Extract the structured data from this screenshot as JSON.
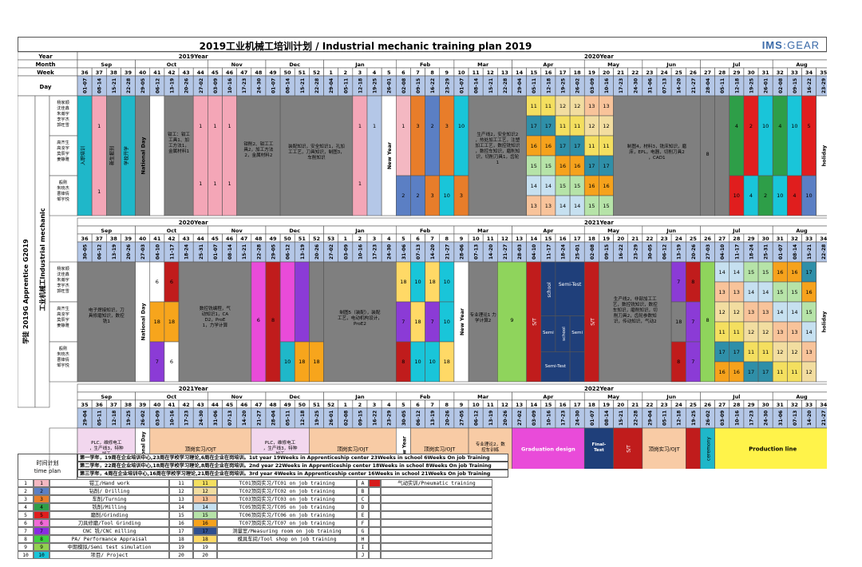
{
  "header": {
    "title": "2019工业机械工培训计划 / Industrial mechanic training plan 2019",
    "logo_main": "IMS",
    "logo_sep": ":",
    "logo_sub": "GEAR"
  },
  "left_labels": {
    "year": "Year",
    "month": "Month",
    "week": "Week",
    "day": "Day",
    "apprentice": "学徒 2019G  Apprentice G2019",
    "industrial": "工业机械工Industrial mechanic",
    "groups": [
      "杨家顺\n沈佳鑫\n朱瀚宇\n李宇杰\n郭旺雪",
      "高齐生\n高浚宇\n莫辰宇\n姜静雅",
      "般刚\n朱晓杰\n曹锋倩\n邹宇悦"
    ]
  },
  "block1": {
    "year_labels": [
      "2019Year",
      "2020Year"
    ],
    "months": [
      "Sep",
      "Oct",
      "Nov",
      "Dec",
      "Jan",
      "Feb",
      "Mar",
      "Apr",
      "May",
      "Jun",
      "Jul",
      "Aug"
    ],
    "weeks": [
      "36",
      "37",
      "38",
      "39",
      "40",
      "41",
      "42",
      "43",
      "44",
      "45",
      "46",
      "47",
      "48",
      "49",
      "50",
      "51",
      "52",
      "1",
      "2",
      "3",
      "4",
      "5",
      "6",
      "7",
      "8",
      "9",
      "10",
      "11",
      "12",
      "13",
      "14",
      "15",
      "16",
      "17",
      "18",
      "19",
      "20",
      "21",
      "22",
      "23",
      "24",
      "25",
      "26",
      "27",
      "28",
      "29",
      "30",
      "31",
      "32",
      "33",
      "34",
      "35"
    ],
    "days": [
      "01-07",
      "08-14",
      "15-21",
      "22-28",
      "29-05",
      "06-12",
      "13-19",
      "20-26",
      "27-02",
      "03-09",
      "10-16",
      "17-23",
      "24-30",
      "01-07",
      "08-14",
      "15-21",
      "22-28",
      "29-04",
      "05-11",
      "12-18",
      "19-25",
      "26-01",
      "02-08",
      "09-15",
      "16-22",
      "23-29",
      "01-07",
      "08-14",
      "15-21",
      "22-28",
      "29-04",
      "05-11",
      "12-18",
      "19-25",
      "26-02",
      "03-09",
      "10-16",
      "17-23",
      "24-30",
      "31-06",
      "07-13",
      "14-20",
      "21-27",
      "28-04",
      "05-11",
      "12-18",
      "19-25",
      "26-01",
      "02-08",
      "09-15",
      "16-22",
      "23-29"
    ]
  },
  "block2": {
    "year_labels": [
      "2020Year",
      "2021Year"
    ],
    "weeks": [
      "36",
      "37",
      "38",
      "39",
      "40",
      "41",
      "42",
      "43",
      "44",
      "45",
      "46",
      "47",
      "48",
      "49",
      "50",
      "51",
      "52",
      "53",
      "1",
      "2",
      "3",
      "4",
      "5",
      "6",
      "7",
      "8",
      "9",
      "10",
      "11",
      "12",
      "13",
      "14",
      "15",
      "16",
      "17",
      "18",
      "19",
      "20",
      "21",
      "22",
      "23",
      "24",
      "25",
      "26",
      "27",
      "28",
      "29",
      "30",
      "31",
      "32",
      "33",
      "34"
    ],
    "days": [
      "30-05",
      "06-12",
      "13-19",
      "20-26",
      "27-03",
      "04-10",
      "11-17",
      "18-24",
      "25-31",
      "01-07",
      "08-14",
      "15-21",
      "22-28",
      "29-05",
      "06-12",
      "13-19",
      "20-26",
      "27-02",
      "03-09",
      "10-16",
      "17-23",
      "24-30",
      "31-06",
      "07-13",
      "14-20",
      "21-27",
      "28-06",
      "07-13",
      "14-20",
      "21-27",
      "28-03",
      "04-10",
      "11-17",
      "18-24",
      "25-01",
      "02-08",
      "09-15",
      "16-22",
      "23-29",
      "30-05",
      "06-12",
      "13-19",
      "20-26",
      "27-03",
      "04-10",
      "11-17",
      "18-24",
      "25-31",
      "01-07",
      "08-14",
      "15-21",
      "22-28"
    ]
  },
  "block3": {
    "year_labels": [
      "2021Year",
      "2022Year"
    ],
    "weeks": [
      "35",
      "36",
      "37",
      "38",
      "39",
      "40",
      "41",
      "42",
      "43",
      "44",
      "45",
      "46",
      "47",
      "48",
      "49",
      "50",
      "51",
      "52",
      "1",
      "2",
      "3",
      "4",
      "5",
      "6",
      "7",
      "8",
      "9",
      "10",
      "11",
      "12",
      "13",
      "14",
      "15",
      "16",
      "17",
      "18",
      "19",
      "20",
      "21",
      "22",
      "23",
      "24",
      "25",
      "26",
      "27",
      "28",
      "29",
      "30",
      "31",
      "32",
      "33",
      "34"
    ],
    "days": [
      "29-04",
      "05-11",
      "12-18",
      "19-25",
      "26-02",
      "03-09",
      "10-16",
      "17-23",
      "24-30",
      "31-06",
      "07-13",
      "14-20",
      "21-27",
      "28-04",
      "05-11",
      "12-18",
      "19-25",
      "26-01",
      "02-08",
      "09-15",
      "16-22",
      "23-29",
      "30-05",
      "06-12",
      "13-19",
      "20-26",
      "27-05",
      "06-12",
      "13-19",
      "20-26",
      "27-02",
      "03-09",
      "10-16",
      "17-23",
      "24-30",
      "01-07",
      "08-14",
      "15-21",
      "22-28",
      "29-04",
      "05-11",
      "12-18",
      "19-25",
      "26-02",
      "03-09",
      "10-16",
      "17-23",
      "24-30",
      "31-06",
      "07-13",
      "14-20",
      "21-27"
    ]
  },
  "texts": {
    "national_day": "National Day",
    "new_year": "New Year",
    "holiday": "holiday",
    "school": "school",
    "semi_test": "Semi-Test",
    "st": "S/T",
    "sixth": "6",
    "eight": "8",
    "nine": "9",
    "t_entry": "入职培训",
    "t_school_start": "新生报到",
    "t_school_open": "学校开学",
    "t_ht1": "钳工：钳工工具1、加工方法1，金属材料1",
    "t_ht2": "钳削2、钳工工具2，加工方法2，金属材料2",
    "t_fit": "装配知识，安全知识1，孔加工工艺，刀具知识，制图3，车削知识",
    "t_prod1": "生产线2，安全知识2，热处加工工艺，注塑加工工艺，数控铣知识，数控车知识，磨削知识，切削刀具1，齿轮1",
    "t_mat": "制图4，材料3，铣床知识，磨床，EPL，电器，切削刀具2，CAD1",
    "t_elec": "电子焊接知识，刀具修磨知识，数控铣1",
    "t_cnc": "数控铣编程，气动知识1，CAD2，ProE1，力学计算",
    "t_draw5": "制图5（装配），装配工艺，电动机构设计，ProE2",
    "t_prof1": "专业理论1 力学计算2",
    "t_prod2": "生产线2，非部加工工艺，数控铣知识，数控车知识，磨削知识，切削刀具2，齿轮参数知识，传动知识，气动2",
    "t_plc": "PLC，维修电工，生产线3，特种加工",
    "t_ojt": "顶岗实习/OJT",
    "t_prof2": "专业理论2，数控车训练",
    "t_grad": "Graduation design",
    "t_final": "Final-Test",
    "t_ceremony": "ceremony",
    "t_prodline": "Production line"
  },
  "plan": {
    "label_cn": "时间计划",
    "label_en": "time plan",
    "rows": [
      "第一学年，19周在企业培训中心,23周在学校学习理论,6周在企业在岗培训。1st year 19Weeks in Apprenticeship center 23Weeks in school 6Weeks On job Training",
      "第二学年，22周在企业培训中心,18周在学校学习理论,8周在企业在岗培训。2nd year 22Weeks in Apprenticeship center 18Weeks in school 8Weeks On job Training",
      "第三学年，4周在企业培训中心,16周在学校学习理论,21周在企业在岗培训。3rd year 4Weeks in Apprenticeship center 16Weeks in school 21Weeks On job Training"
    ]
  },
  "legend": {
    "items": [
      {
        "n": "1",
        "c": "#f4b8c2",
        "label": "钳工/Hand work",
        "n2": "11",
        "label2": "TC01顶岗实习/TC01 on job training",
        "l3": "A",
        "label3": "气动实训/Pneumatic training"
      },
      {
        "n": "2",
        "c": "#5b7fc4",
        "label": "钻削/ Drilling",
        "n2": "12",
        "label2": "TC02顶岗实习/TC02 on job training",
        "l3": "B",
        "label3": ""
      },
      {
        "n": "3",
        "c": "#e87d2a",
        "label": "车削/Turning",
        "n2": "13",
        "label2": "TC03顶岗实习/TC03 on job training",
        "l3": "C",
        "label3": ""
      },
      {
        "n": "4",
        "c": "#2e9e48",
        "label": "铣削/Milling",
        "n2": "14",
        "label2": "TC05顶岗实习/TC05 on job training",
        "l3": "D",
        "label3": ""
      },
      {
        "n": "5",
        "c": "#e01e1e",
        "label": "磨削/Grinding",
        "n2": "15",
        "label2": "TC06顶岗实习/TC06 on job training",
        "l3": "E",
        "label3": ""
      },
      {
        "n": "6",
        "c": "#f06ad6",
        "label": "刀具修磨/Tool Grinding",
        "n2": "16",
        "label2": "TC07顶岗实习/TC07 on job training",
        "l3": "F",
        "label3": ""
      },
      {
        "n": "7",
        "c": "#8a2be2",
        "label": "CNC 铣/CNC milling",
        "n2": "17",
        "label2": "测量室/Measuring room on job training",
        "l3": "G",
        "label3": ""
      },
      {
        "n": "8",
        "c": "#3fd13f",
        "label": "PA/ Performance Appraisal",
        "n2": "18",
        "label2": "模具车间/Tool shop on job training",
        "l3": "H",
        "label3": ""
      },
      {
        "n": "9",
        "c": "#92d050",
        "label": "中期模拟/Semi test simulation",
        "n2": "19",
        "label2": "",
        "l3": "I",
        "label3": ""
      },
      {
        "n": "10",
        "c": "#19c5d9",
        "label": "项目/ Project",
        "n2": "20",
        "label2": "",
        "l3": "J",
        "label3": ""
      }
    ],
    "colors2": [
      "#f4df5f",
      "#f2dda0",
      "#f8c39a",
      "#c6e0f0",
      "#b6e3a8",
      "#f6a21c",
      "#2f4f8f",
      "#ffd966",
      "#ffffff",
      "#ffffff"
    ],
    "red_A": "#d61c1c"
  },
  "colors": {
    "border": "#555555",
    "header_blue": "#b4c7e7",
    "gray": "#7f7f7f",
    "teal": "#1fb7c9",
    "navy": "#1f3f7a",
    "yellow": "#fff34a",
    "peach": "#f8cba5",
    "pink": "#f4a6b7",
    "magenta": "#e94bd9",
    "purple": "#8b3bd6",
    "darkred": "#c01c1c",
    "orange": "#f7a51c",
    "lightgreen": "#8fd45c"
  }
}
